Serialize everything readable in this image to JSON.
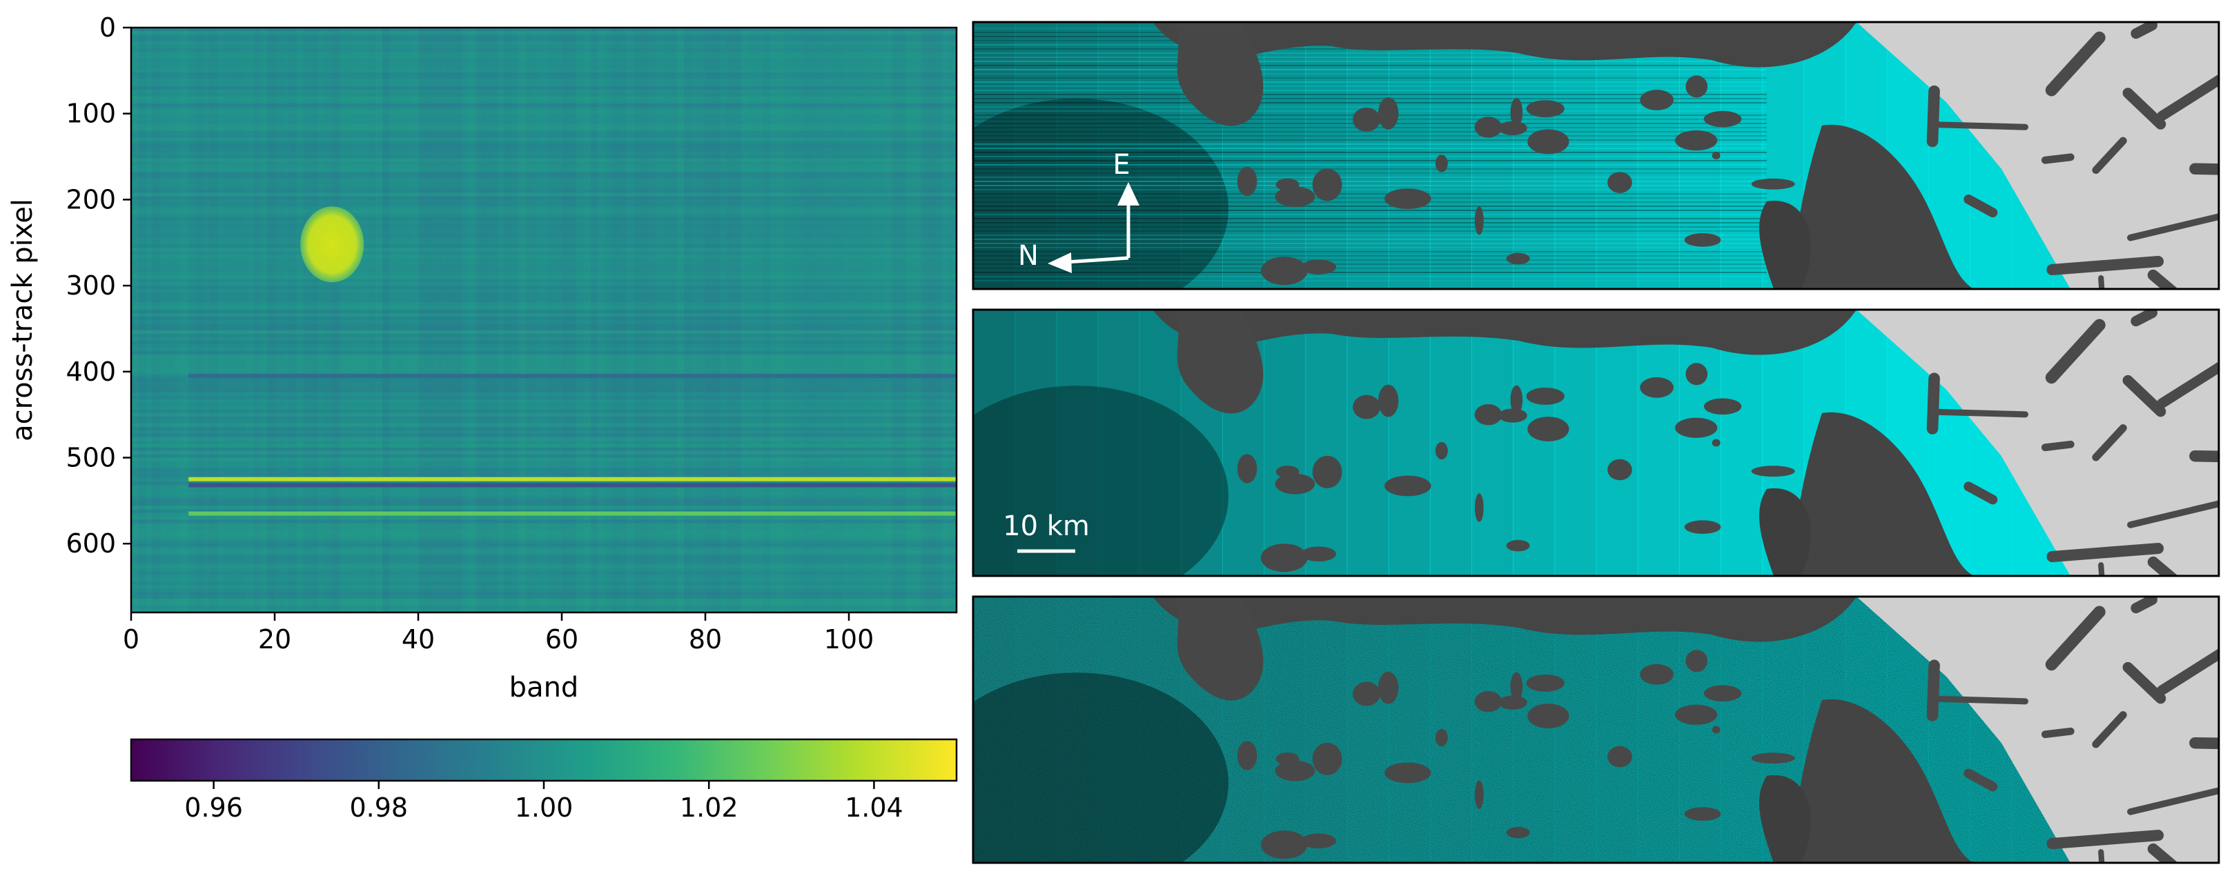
{
  "chart_data": [
    {
      "type": "heatmap",
      "title": "",
      "xlabel": "band",
      "ylabel": "across-track pixel",
      "xlim": [
        0,
        115
      ],
      "ylim": [
        680,
        0
      ],
      "x_ticks": [
        0,
        20,
        40,
        60,
        80,
        100
      ],
      "y_ticks": [
        0,
        100,
        200,
        300,
        400,
        500,
        600
      ],
      "colormap": "viridis",
      "value_range": [
        0.95,
        1.05
      ],
      "features": [
        {
          "kind": "blob",
          "band": 28,
          "pixel": 252,
          "value": 1.035
        },
        {
          "kind": "row",
          "pixel": 405,
          "value": 0.985
        },
        {
          "kind": "row",
          "pixel": 525,
          "value": 1.04
        },
        {
          "kind": "row",
          "pixel": 532,
          "value": 0.975
        },
        {
          "kind": "row",
          "pixel": 565,
          "value": 1.025
        }
      ],
      "grid": false
    },
    {
      "type": "colorbar",
      "orientation": "horizontal",
      "colormap": "viridis",
      "range": [
        0.95,
        1.05
      ],
      "ticks": [
        "0.96",
        "0.98",
        "1.00",
        "1.02",
        "1.04"
      ]
    },
    {
      "type": "image",
      "panel": "top",
      "content": "cyan water with across-track striping over grey terrain",
      "annotations": {
        "north_label": "N",
        "east_label": "E"
      }
    },
    {
      "type": "image",
      "panel": "middle",
      "content": "cyan water after destriping over grey terrain",
      "annotations": {
        "scale_bar_label": "10 km"
      }
    },
    {
      "type": "image",
      "panel": "bottom",
      "content": "noisy cyan residual over grey terrain"
    }
  ],
  "colors": {
    "viridis": [
      "#440154",
      "#482878",
      "#3e4a89",
      "#31688e",
      "#26828e",
      "#1f9e89",
      "#35b779",
      "#6ece58",
      "#b5de2b",
      "#fde725"
    ],
    "water": "#00e5e5",
    "land_dark": "#3c3c3c",
    "land_light": "#e8e8e8"
  }
}
